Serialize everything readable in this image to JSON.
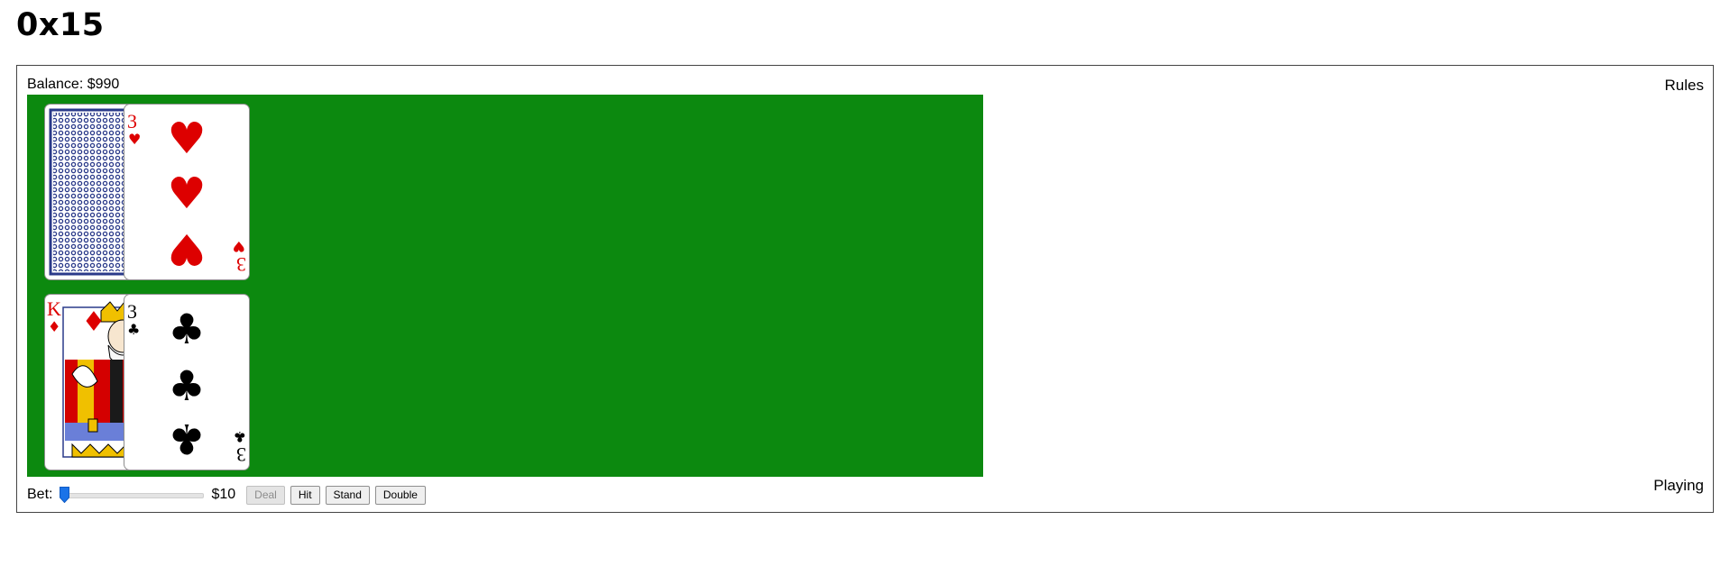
{
  "page": {
    "title": "0x15"
  },
  "header": {
    "balance_label": "Balance: $990",
    "rules_label": "Rules"
  },
  "dealer": {
    "cards": [
      {
        "face": "back",
        "pattern_color": "#2a3a8a"
      },
      {
        "face": "up",
        "rank": "3",
        "suit": "hearts",
        "suit_symbol": "♥",
        "color": "#dd0000"
      }
    ]
  },
  "player": {
    "cards": [
      {
        "face": "up",
        "rank": "K",
        "suit": "diamonds",
        "suit_symbol": "♦",
        "color": "#dd0000",
        "court": "king"
      },
      {
        "face": "up",
        "rank": "3",
        "suit": "clubs",
        "suit_symbol": "♣",
        "color": "#000000"
      }
    ]
  },
  "controls": {
    "bet_label": "Bet:",
    "bet_amount": "$10",
    "bet_slider_level": 0,
    "deal_label": "Deal",
    "deal_enabled": false,
    "hit_label": "Hit",
    "stand_label": "Stand",
    "double_label": "Double"
  },
  "status": "Playing",
  "colors": {
    "felt": "#0c890f",
    "slider_thumb": "#1a73e8"
  }
}
